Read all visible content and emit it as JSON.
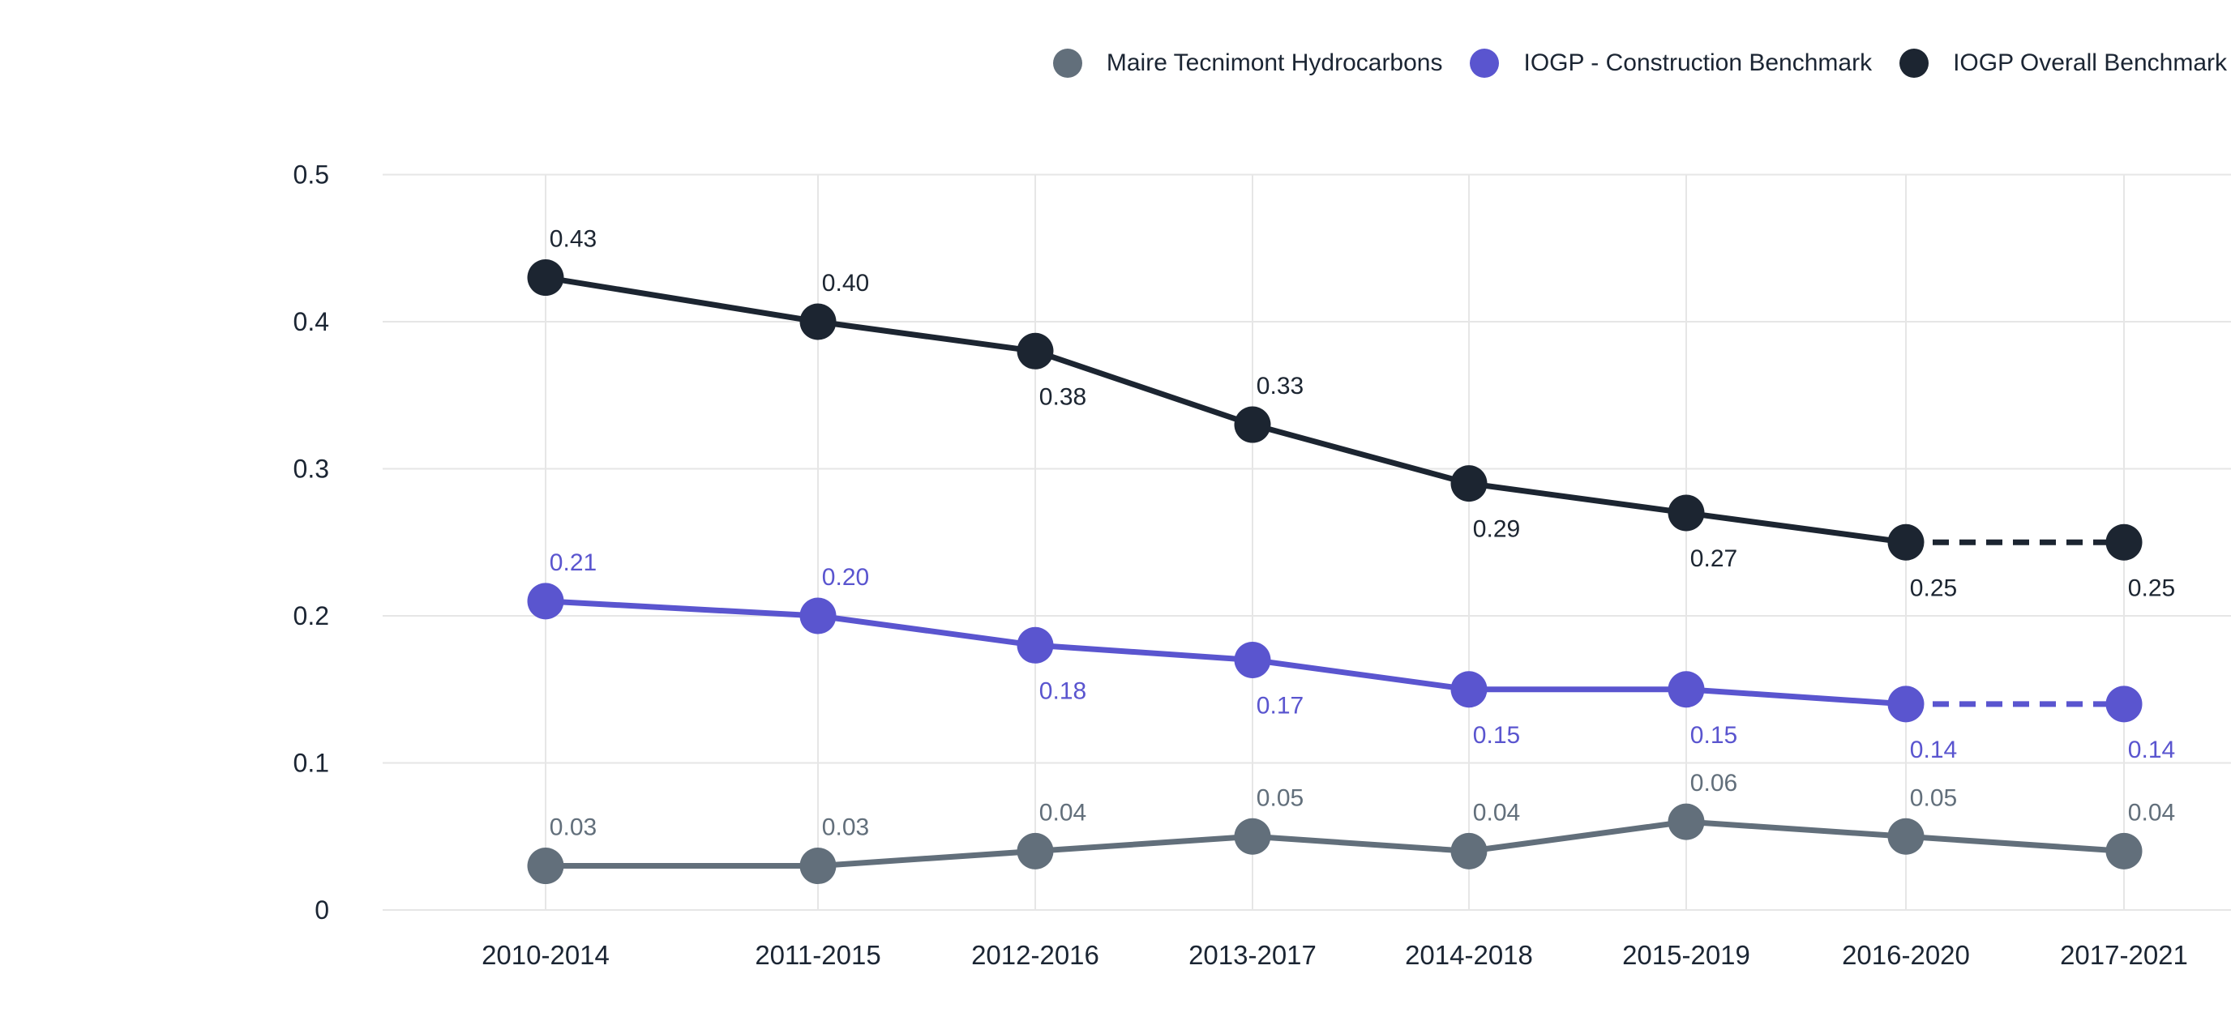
{
  "chart_data": {
    "type": "line",
    "title": "",
    "categories": [
      "2010-2014",
      "2011-2015",
      "2012-2016",
      "2013-2017",
      "2014-2018",
      "2015-2019",
      "2016-2020",
      "2017-2021"
    ],
    "y_tick_labels": [
      "0",
      "0.1",
      "0.2",
      "0.3",
      "0.4",
      "0.5"
    ],
    "y_tick_values": [
      0,
      0.1,
      0.2,
      0.3,
      0.4,
      0.5
    ],
    "ylim": [
      0,
      0.5
    ],
    "grid": true,
    "legend_position": "top-right",
    "colors": {
      "background": "#ffffff",
      "grid": "#e6e6e6",
      "axis_text": "#1b2533"
    },
    "series": [
      {
        "name": "Maire Tecnimont Hydrocarbons",
        "color": "#626f7b",
        "values": [
          0.03,
          0.03,
          0.04,
          0.05,
          0.04,
          0.06,
          0.05,
          0.04
        ],
        "labels": [
          "0.03",
          "0.03",
          "0.04",
          "0.05",
          "0.04",
          "0.06",
          "0.05",
          "0.04"
        ],
        "label_positions": [
          "above",
          "above",
          "above",
          "above",
          "above",
          "above",
          "above",
          "above"
        ],
        "dashed_last_segment": false
      },
      {
        "name": "IOGP - Construction Benchmark",
        "color": "#5a55cf",
        "values": [
          0.21,
          0.2,
          0.18,
          0.17,
          0.15,
          0.15,
          0.14,
          0.14
        ],
        "labels": [
          "0.21",
          "0.20",
          "0.18",
          "0.17",
          "0.15",
          "0.15",
          "0.14",
          "0.14"
        ],
        "label_positions": [
          "above",
          "above",
          "below",
          "below",
          "below",
          "below",
          "below",
          "below"
        ],
        "dashed_last_segment": true
      },
      {
        "name": "IOGP Overall Benchmark",
        "color": "#1c2531",
        "values": [
          0.43,
          0.4,
          0.38,
          0.33,
          0.29,
          0.27,
          0.25,
          0.25
        ],
        "labels": [
          "0.43",
          "0.40",
          "0.38",
          "0.33",
          "0.29",
          "0.27",
          "0.25",
          "0.25"
        ],
        "label_positions": [
          "above",
          "above",
          "below",
          "above",
          "below",
          "below",
          "below",
          "below"
        ],
        "dashed_last_segment": true
      }
    ]
  }
}
